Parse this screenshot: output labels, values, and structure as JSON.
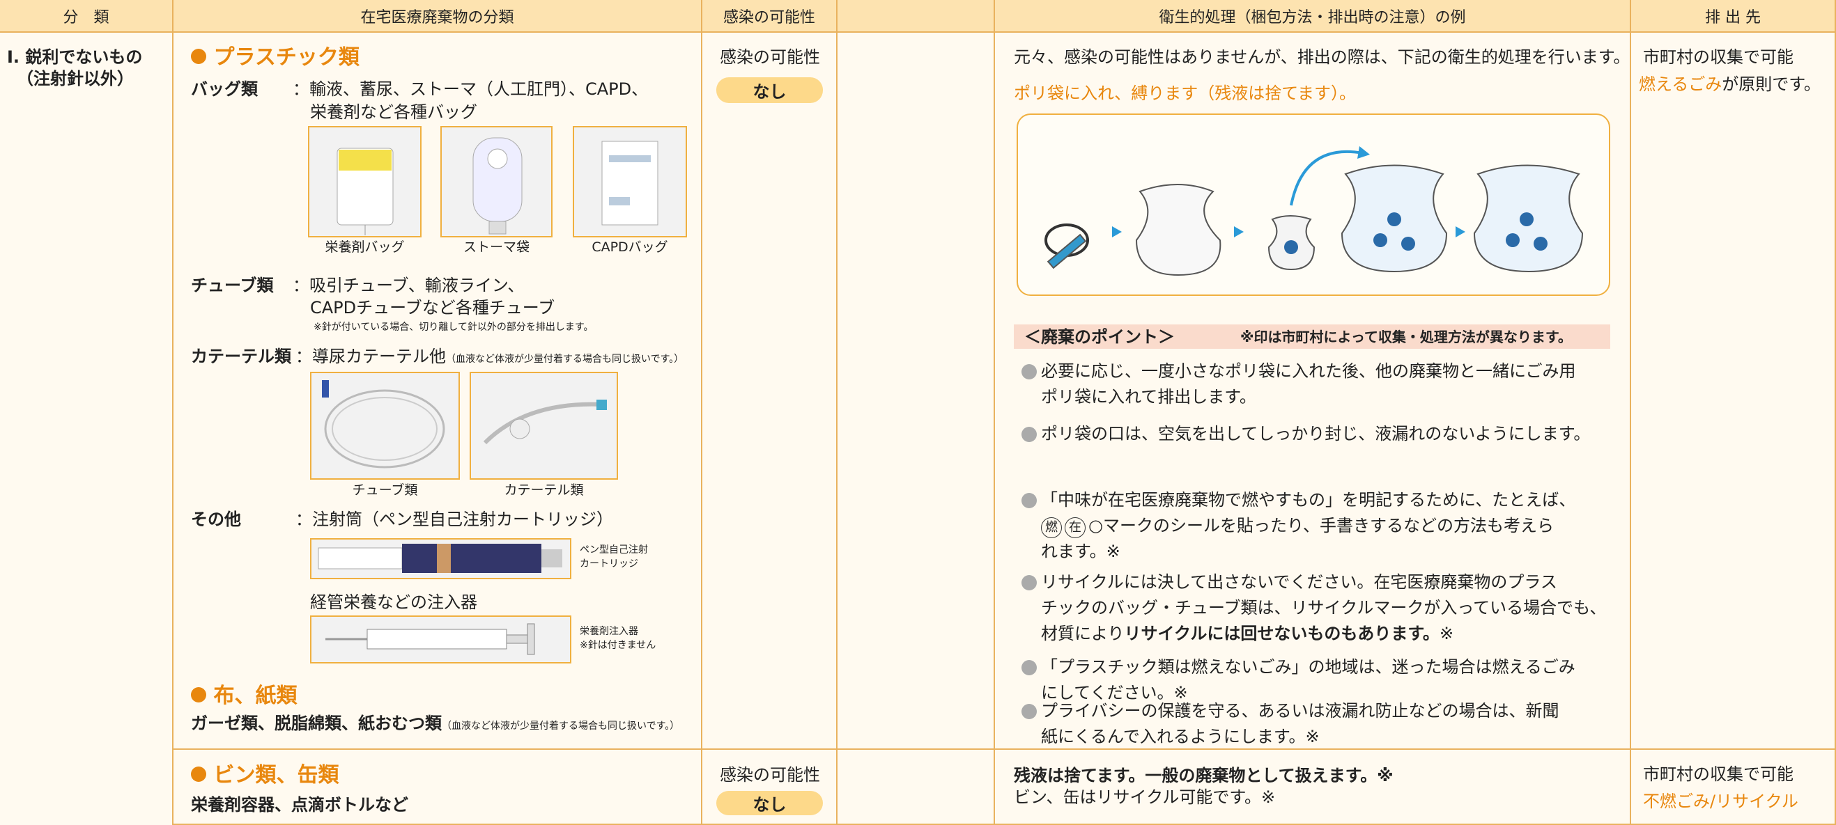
{
  "header": {
    "category": "分　類",
    "waste_type": "在宅医療廃棄物の分類",
    "infection": "感染の可能性",
    "handling": "衛生的処理（梱包方法・排出時の注意）の例",
    "destination": "排 出 先"
  },
  "rows": [
    {
      "category": [
        "I. 鋭利でないもの",
        "（注射針以外）"
      ],
      "plastic": {
        "heading": "プラスチック類",
        "bag": {
          "label": "バッグ類",
          "lines": [
            "：輸液、蓄尿、ストーマ（人工肛門）、CAPD、",
            "栄養剤など各種バッグ"
          ],
          "images": [
            "栄養剤バッグ",
            "ストーマ袋",
            "CAPDバッグ"
          ]
        },
        "tube": {
          "label": "チューブ類",
          "lines": [
            "：吸引チューブ、輸液ライン、",
            "CAPDチューブなど各種チューブ"
          ],
          "note": "※針が付いている場合、切り離して針以外の部分を排出します。"
        },
        "catheter": {
          "label": "カテーテル類",
          "line": "：導尿カテーテル他",
          "note": "（血液など体液が少量付着する場合も同じ扱いです。）",
          "images": [
            "チューブ類",
            "カテーテル類"
          ]
        },
        "other": {
          "label": "その他",
          "line": "：注射筒（ペン型自己注射カートリッジ）",
          "pen_caption": [
            "ペン型自己注射",
            "カートリッジ"
          ],
          "sub": "経管栄養などの注入器",
          "syringe_caption": [
            "栄養剤注入器",
            "※針は付きません"
          ]
        }
      },
      "cloth": {
        "heading": "布、紙類",
        "line": "ガーゼ類、脱脂綿類、紙おむつ類",
        "note": "（血液など体液が少量付着する場合も同じ扱いです。）"
      },
      "infection": {
        "label": "感染の可能性",
        "value": "なし"
      },
      "handling": {
        "intro": "元々、感染の可能性はありませんが、排出の際は、下記の衛生的処理を行います。",
        "step": "ポリ袋に入れ、縛ります（残液は捨てます）。",
        "points_title": "＜廃棄のポイント＞",
        "points_note": "※印は市町村によって収集・処理方法が異なります。",
        "points": [
          {
            "lines": [
              "必要に応じ、一度小さなポリ袋に入れた後、他の廃棄物と一緒にごみ用",
              "ポリ袋に入れて排出します。"
            ]
          },
          {
            "lines": [
              "ポリ袋の口は、空気を出してしっかり封じ、液漏れのないようにします。"
            ]
          },
          {
            "lines": [
              "「中味が在宅医療廃棄物で燃やすもの」を明記するために、たとえば、",
              "○マークのシールを貼ったり、手書きするなどの方法も考えら",
              "れます。※"
            ],
            "marks": [
              "燃",
              "在"
            ]
          },
          {
            "lines": [
              "リサイクルには決して出さないでください。在宅医療廃棄物のプラス",
              "チックのバッグ・チューブ類は、リサイクルマークが入っている場合でも、",
              "材質により"
            ],
            "bold": "リサイクルには回せないものもあります。",
            "tail": "※"
          },
          {
            "lines": [
              "「プラスチック類は燃えないごみ」の地域は、迷った場合は燃えるごみ",
              "にしてください。※"
            ]
          },
          {
            "lines": [
              "プライバシーの保護を守る、あるいは液漏れ防止などの場合は、新聞",
              "紙にくるんで入れるようにします。※"
            ]
          }
        ]
      },
      "destination": {
        "line": "市町村の収集で可能",
        "highlight": "燃えるごみ",
        "rest": "が原則です。"
      }
    },
    {
      "heading": "ビン類、缶類",
      "line": "栄養剤容器、点滴ボトルなど",
      "infection": {
        "label": "感染の可能性",
        "value": "なし"
      },
      "handling": {
        "bold": "残液は捨てます。一般の廃棄物として扱えます。※",
        "line": "ビン、缶はリサイクル可能です。※"
      },
      "destination": {
        "line": "市町村の収集で可能",
        "highlight": "不燃ごみ/リサイクル"
      }
    }
  ]
}
